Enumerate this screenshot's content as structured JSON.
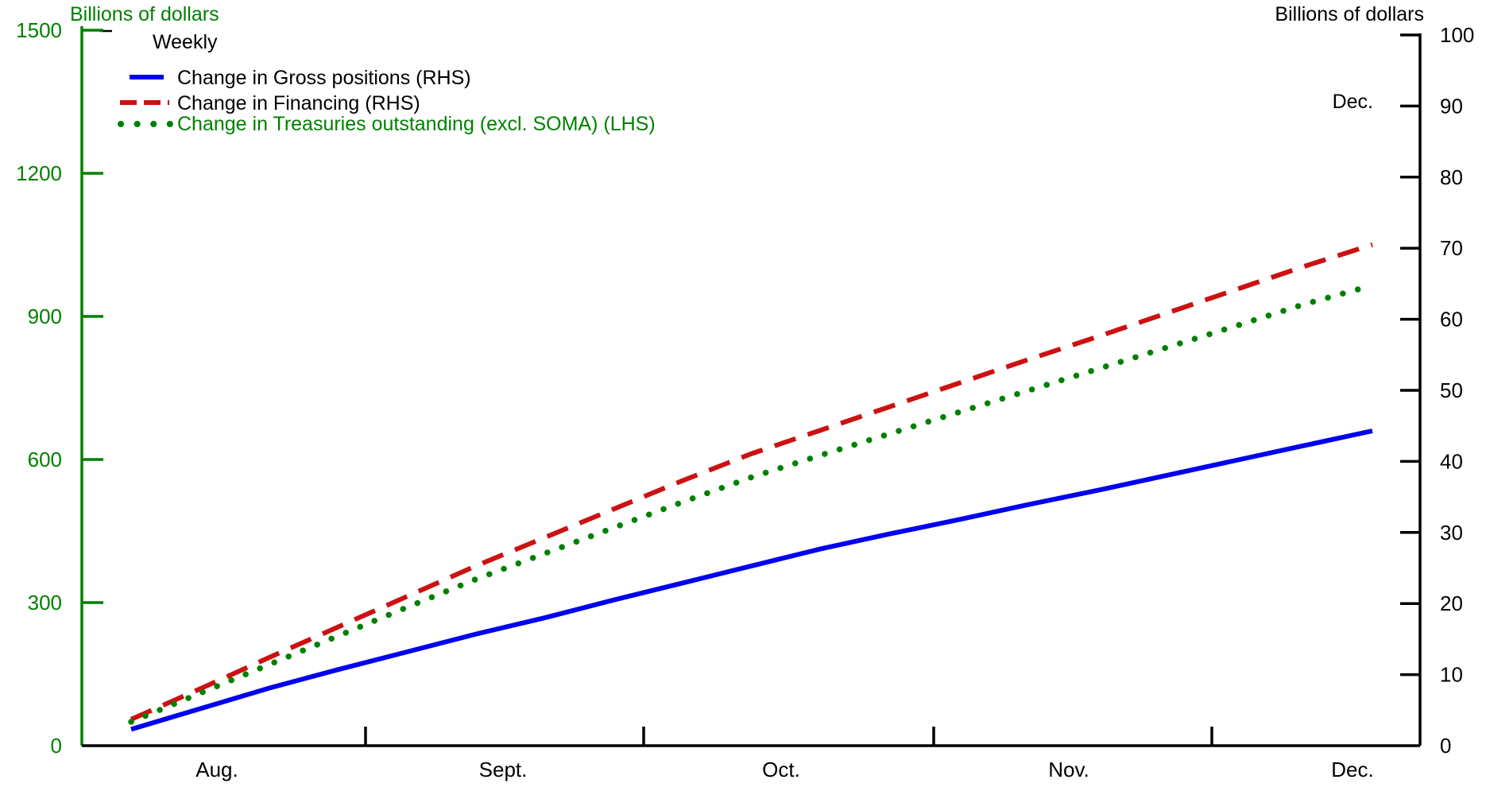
{
  "chart_data": {
    "type": "line",
    "frequency_label": "Weekly",
    "annotation": {
      "text": "Dec."
    },
    "left_axis": {
      "title": "Billions of dollars",
      "color": "#008000",
      "min": 0,
      "max": 1500,
      "ticks": [
        0,
        300,
        600,
        900,
        1200,
        1500
      ]
    },
    "right_axis": {
      "title": "Billions of dollars",
      "color": "#000000",
      "min": 0,
      "max": 100,
      "ticks": [
        0,
        10,
        20,
        30,
        40,
        50,
        60,
        70,
        80,
        90,
        100
      ]
    },
    "x_axis": {
      "month_labels": [
        "Aug.",
        "Sept.",
        "Oct.",
        "Nov.",
        "Dec."
      ]
    },
    "series": [
      {
        "name": "Change in Gross positions (RHS)",
        "axis": "right",
        "color": "#0000ee",
        "label_color": "#000000",
        "line_style": "solid",
        "weekly_values": [
          2.3,
          5.2,
          8.1,
          10.7,
          13.2,
          15.7,
          18.0,
          20.5,
          22.9,
          25.3,
          27.7,
          29.8,
          31.8,
          33.9,
          35.9,
          38.0,
          40.1,
          42.2,
          44.3
        ]
      },
      {
        "name": "Change in Financing (RHS)",
        "axis": "right",
        "color": "#cc1111",
        "label_color": "#000000",
        "line_style": "dashed",
        "weekly_values": [
          3.7,
          8.0,
          12.4,
          16.7,
          21.0,
          25.3,
          29.3,
          33.3,
          37.3,
          41.1,
          44.4,
          47.7,
          51.0,
          54.3,
          57.5,
          60.8,
          64.1,
          67.4,
          70.5
        ]
      },
      {
        "name": "Change in Treasuries outstanding (excl. SOMA) (LHS)",
        "axis": "left",
        "color": "#008000",
        "label_color": "#008000",
        "line_style": "dotted",
        "weekly_values": [
          50,
          110,
          170,
          230,
          290,
          349,
          403,
          457,
          511,
          563,
          609,
          654,
          699,
          744,
          789,
          834,
          879,
          925,
          965
        ]
      }
    ]
  }
}
